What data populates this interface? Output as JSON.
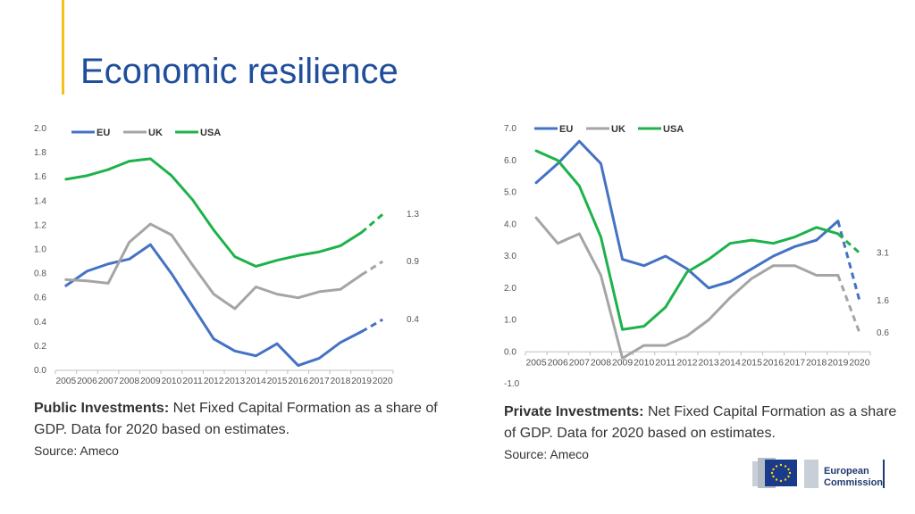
{
  "page": {
    "title": "Economic resilience",
    "logo_text": [
      "European",
      "Commission"
    ]
  },
  "captions": [
    {
      "bold": "Public Investments:",
      "text": " Net Fixed Capital Formation as a share of GDP.  Data for 2020 based on estimates.",
      "source": "Source: Ameco"
    },
    {
      "bold": "Private Investments:",
      "text": " Net Fixed Capital Formation as a share of GDP.  Data for 2020 based on estimates.",
      "source": "Source: Ameco"
    }
  ],
  "chart_data": [
    {
      "type": "line",
      "title": "",
      "x": [
        "2005",
        "2006",
        "2007",
        "2008",
        "2009",
        "2010",
        "2011",
        "2012",
        "2013",
        "2014",
        "2015",
        "2016",
        "2017",
        "2018",
        "2019",
        "2020"
      ],
      "ylim": [
        0,
        2
      ],
      "yticks": [
        "0.0",
        "0.2",
        "0.4",
        "0.6",
        "0.8",
        "1.0",
        "1.2",
        "1.4",
        "1.6",
        "1.8",
        "2.0"
      ],
      "legend": "top-left",
      "grid": false,
      "estimate_from": "2020",
      "series": [
        {
          "name": "EU",
          "color": "#4472c4",
          "values": [
            0.7,
            0.82,
            0.88,
            0.92,
            1.04,
            0.8,
            0.53,
            0.26,
            0.16,
            0.12,
            0.22,
            0.04,
            0.1,
            0.23,
            0.32,
            0.42
          ],
          "end_label": "0.4"
        },
        {
          "name": "UK",
          "color": "#a5a5a5",
          "values": [
            0.75,
            0.74,
            0.72,
            1.06,
            1.21,
            1.12,
            0.87,
            0.63,
            0.51,
            0.69,
            0.63,
            0.6,
            0.65,
            0.67,
            0.79,
            0.9
          ],
          "end_label": "0.9"
        },
        {
          "name": "USA",
          "color": "#1db24b",
          "values": [
            1.58,
            1.61,
            1.66,
            1.73,
            1.75,
            1.61,
            1.41,
            1.16,
            0.94,
            0.86,
            0.91,
            0.95,
            0.98,
            1.03,
            1.14,
            1.29
          ],
          "end_label": "1.3"
        }
      ]
    },
    {
      "type": "line",
      "title": "",
      "x": [
        "2005",
        "2006",
        "2007",
        "2008",
        "2009",
        "2010",
        "2011",
        "2012",
        "2013",
        "2014",
        "2015",
        "2016",
        "2017",
        "2018",
        "2019",
        "2020"
      ],
      "ylim": [
        -1,
        7
      ],
      "yticks": [
        "-1.0",
        "0.0",
        "1.0",
        "2.0",
        "3.0",
        "4.0",
        "5.0",
        "6.0",
        "7.0"
      ],
      "legend": "top-left",
      "grid": false,
      "estimate_from": "2020",
      "series": [
        {
          "name": "EU",
          "color": "#4472c4",
          "values": [
            5.3,
            5.9,
            6.6,
            5.9,
            2.9,
            2.7,
            3.0,
            2.6,
            2.0,
            2.2,
            2.6,
            3.0,
            3.3,
            3.5,
            4.1,
            1.6
          ],
          "end_label": "1.6"
        },
        {
          "name": "UK",
          "color": "#a5a5a5",
          "values": [
            4.2,
            3.4,
            3.7,
            2.4,
            -0.2,
            0.2,
            0.2,
            0.5,
            1.0,
            1.7,
            2.3,
            2.7,
            2.7,
            2.4,
            2.4,
            0.6
          ],
          "end_label": "0.6"
        },
        {
          "name": "USA",
          "color": "#1db24b",
          "values": [
            6.3,
            6.0,
            5.2,
            3.6,
            0.7,
            0.8,
            1.4,
            2.5,
            2.9,
            3.4,
            3.5,
            3.4,
            3.6,
            3.9,
            3.7,
            3.1
          ],
          "end_label": "3.1"
        }
      ]
    }
  ]
}
